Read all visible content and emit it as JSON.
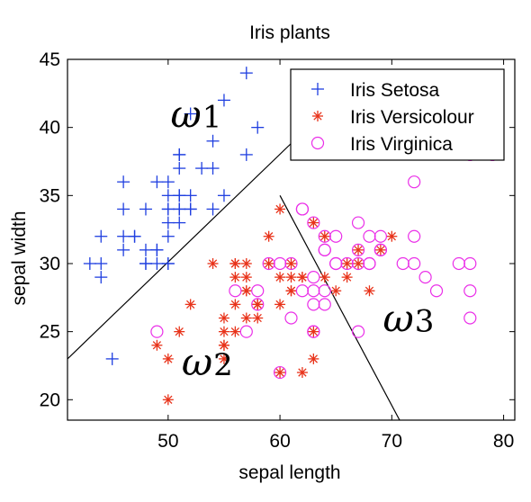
{
  "chart_data": {
    "type": "scatter",
    "title": "Iris plants",
    "xlabel": "sepal length",
    "ylabel": "sepal width",
    "xlim": [
      41,
      81
    ],
    "ylim": [
      18.5,
      45
    ],
    "xticks": [
      50,
      60,
      70,
      80
    ],
    "yticks": [
      20,
      25,
      30,
      35,
      40,
      45
    ],
    "grid": false,
    "legend_position": "top-right",
    "series": [
      {
        "name": "Iris Setosa",
        "marker": "plus",
        "color": "#1f3fe0",
        "points": [
          [
            43,
            30
          ],
          [
            44,
            29
          ],
          [
            44,
            30
          ],
          [
            44,
            32
          ],
          [
            45,
            23
          ],
          [
            46,
            31
          ],
          [
            46,
            32
          ],
          [
            46,
            34
          ],
          [
            46,
            36
          ],
          [
            47,
            32
          ],
          [
            47,
            32
          ],
          [
            48,
            30
          ],
          [
            48,
            31
          ],
          [
            48,
            34
          ],
          [
            48,
            30
          ],
          [
            49,
            30
          ],
          [
            49,
            31
          ],
          [
            49,
            36
          ],
          [
            50,
            30
          ],
          [
            50,
            32
          ],
          [
            50,
            33
          ],
          [
            50,
            34
          ],
          [
            50,
            35
          ],
          [
            50,
            36
          ],
          [
            50,
            34
          ],
          [
            51,
            33
          ],
          [
            51,
            34
          ],
          [
            51,
            35
          ],
          [
            51,
            37
          ],
          [
            51,
            38
          ],
          [
            51,
            38
          ],
          [
            51,
            35
          ],
          [
            52,
            34
          ],
          [
            52,
            35
          ],
          [
            52,
            41
          ],
          [
            53,
            37
          ],
          [
            54,
            34
          ],
          [
            54,
            37
          ],
          [
            54,
            39
          ],
          [
            55,
            35
          ],
          [
            55,
            42
          ],
          [
            57,
            38
          ],
          [
            57,
            44
          ],
          [
            58,
            40
          ],
          [
            50,
            30
          ],
          [
            49,
            31
          ],
          [
            52,
            34
          ],
          [
            51,
            34
          ]
        ]
      },
      {
        "name": "Iris Versicolour",
        "marker": "asterisk",
        "color": "#e8331a",
        "points": [
          [
            49,
            24
          ],
          [
            50,
            20
          ],
          [
            50,
            23
          ],
          [
            51,
            25
          ],
          [
            52,
            27
          ],
          [
            54,
            30
          ],
          [
            55,
            23
          ],
          [
            55,
            24
          ],
          [
            55,
            25
          ],
          [
            55,
            26
          ],
          [
            56,
            25
          ],
          [
            56,
            27
          ],
          [
            56,
            29
          ],
          [
            56,
            30
          ],
          [
            57,
            26
          ],
          [
            57,
            28
          ],
          [
            57,
            29
          ],
          [
            57,
            30
          ],
          [
            58,
            26
          ],
          [
            58,
            27
          ],
          [
            59,
            30
          ],
          [
            60,
            22
          ],
          [
            60,
            27
          ],
          [
            60,
            29
          ],
          [
            60,
            34
          ],
          [
            61,
            28
          ],
          [
            61,
            29
          ],
          [
            61,
            30
          ],
          [
            62,
            22
          ],
          [
            62,
            29
          ],
          [
            63,
            23
          ],
          [
            63,
            25
          ],
          [
            63,
            33
          ],
          [
            64,
            29
          ],
          [
            64,
            32
          ],
          [
            65,
            28
          ],
          [
            66,
            29
          ],
          [
            66,
            30
          ],
          [
            67,
            30
          ],
          [
            67,
            31
          ],
          [
            68,
            28
          ],
          [
            69,
            31
          ],
          [
            70,
            32
          ],
          [
            59,
            32
          ],
          [
            55,
            24
          ],
          [
            56,
            30
          ],
          [
            57,
            28
          ],
          [
            62,
            29
          ],
          [
            58,
            27
          ],
          [
            61,
            28
          ]
        ]
      },
      {
        "name": "Iris Virginica",
        "marker": "circle",
        "color": "#ea2ee8",
        "points": [
          [
            49,
            25
          ],
          [
            56,
            28
          ],
          [
            57,
            25
          ],
          [
            58,
            27
          ],
          [
            58,
            28
          ],
          [
            59,
            30
          ],
          [
            60,
            22
          ],
          [
            60,
            30
          ],
          [
            61,
            26
          ],
          [
            61,
            30
          ],
          [
            62,
            28
          ],
          [
            62,
            34
          ],
          [
            63,
            25
          ],
          [
            63,
            27
          ],
          [
            63,
            28
          ],
          [
            63,
            29
          ],
          [
            63,
            33
          ],
          [
            64,
            27
          ],
          [
            64,
            28
          ],
          [
            64,
            31
          ],
          [
            64,
            32
          ],
          [
            65,
            30
          ],
          [
            65,
            32
          ],
          [
            66,
            30
          ],
          [
            67,
            25
          ],
          [
            67,
            30
          ],
          [
            67,
            31
          ],
          [
            67,
            33
          ],
          [
            68,
            30
          ],
          [
            68,
            32
          ],
          [
            69,
            31
          ],
          [
            69,
            32
          ],
          [
            71,
            30
          ],
          [
            72,
            30
          ],
          [
            72,
            32
          ],
          [
            72,
            36
          ],
          [
            73,
            29
          ],
          [
            74,
            28
          ],
          [
            76,
            30
          ],
          [
            77,
            26
          ],
          [
            77,
            28
          ],
          [
            77,
            30
          ],
          [
            77,
            38
          ],
          [
            79,
            38
          ],
          [
            63,
            25
          ],
          [
            65,
            30
          ],
          [
            62,
            34
          ],
          [
            64,
            31
          ],
          [
            68,
            30
          ],
          [
            69,
            31
          ]
        ]
      }
    ],
    "boundaries": [
      {
        "from": [
          41,
          23
        ],
        "to": [
          61.6,
          39.3
        ]
      },
      {
        "from": [
          60,
          35
        ],
        "to": [
          70.7,
          18.5
        ]
      }
    ],
    "annotations": [
      {
        "text": "ω1",
        "x": 52.5,
        "y": 40
      },
      {
        "text": "ω2",
        "x": 53.5,
        "y": 21.8
      },
      {
        "text": "ω3",
        "x": 71.5,
        "y": 25
      }
    ]
  }
}
